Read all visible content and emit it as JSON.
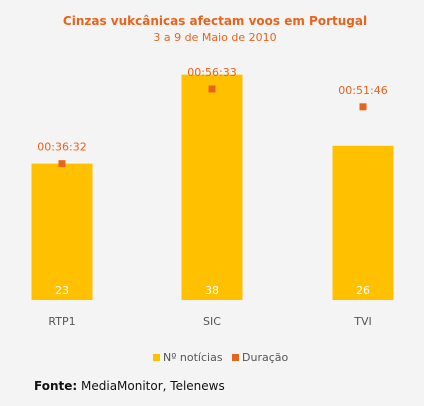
{
  "chart_data": {
    "type": "bar",
    "title": "Cinzas vukcânicas afectam voos em Portugal",
    "subtitle": "3 a 9 de Maio de 2010",
    "categories": [
      "RTP1",
      "SIC",
      "TVI"
    ],
    "series": [
      {
        "name": "Nº notícias",
        "values": [
          23,
          38,
          26
        ],
        "color": "#ffc000"
      },
      {
        "name": "Duração",
        "values": [
          "00:36:32",
          "00:56:33",
          "00:51:46"
        ],
        "seconds": [
          2192,
          3393,
          3106
        ],
        "color": "#e8631c"
      }
    ],
    "ylim_count": [
      0,
      43
    ],
    "ylim_duration_seconds": [
      0,
      4100
    ],
    "legend_position": "bottom",
    "grid": false
  },
  "footer": {
    "label": "Fonte:",
    "text": "MediaMonitor, Telenews"
  },
  "colors": {
    "title": "#e8631c",
    "subtitle": "#e8631c",
    "category_label": "#555555",
    "bar_value_label": "#ffffff"
  }
}
